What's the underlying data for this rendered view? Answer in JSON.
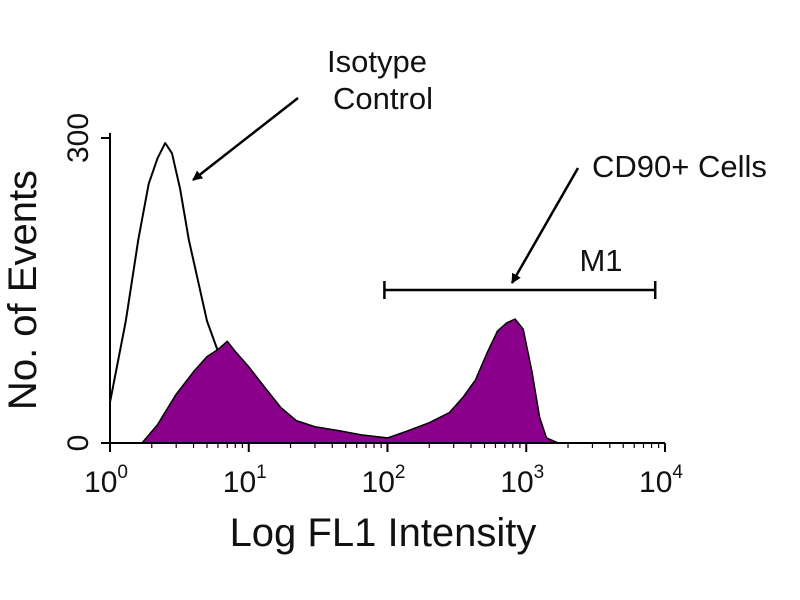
{
  "chart_data": {
    "type": "area",
    "xlabel": "Log FL1 Intensity",
    "ylabel": "No. of Events",
    "xscale": "log",
    "xlim": [
      1,
      10000
    ],
    "ylim": [
      0,
      300
    ],
    "x_ticks": [
      {
        "base": "10",
        "exp": "0"
      },
      {
        "base": "10",
        "exp": "1"
      },
      {
        "base": "10",
        "exp": "2"
      },
      {
        "base": "10",
        "exp": "3"
      },
      {
        "base": "10",
        "exp": "4"
      }
    ],
    "y_ticks": [
      "0",
      "300"
    ],
    "series": [
      {
        "name": "Isotype Control",
        "style": "outline",
        "color": "#000000",
        "x": [
          1,
          1.3,
          1.6,
          1.9,
          2.2,
          2.5,
          2.8,
          3.2,
          3.7,
          4.3,
          5,
          6,
          7,
          8.5,
          10,
          12.5,
          16,
          20,
          25,
          32,
          45,
          65,
          100,
          140,
          200
        ],
        "y": [
          40,
          120,
          200,
          255,
          280,
          295,
          285,
          250,
          200,
          160,
          120,
          90,
          70,
          50,
          38,
          28,
          20,
          14,
          10,
          7,
          4,
          2,
          1,
          0,
          0
        ]
      },
      {
        "name": "CD90+ Cells",
        "style": "filled",
        "color": "#8b008b",
        "x": [
          1.7,
          2.2,
          3,
          4,
          5,
          6,
          7,
          8,
          10,
          13,
          17,
          22,
          30,
          45,
          65,
          100,
          140,
          200,
          280,
          350,
          430,
          520,
          620,
          720,
          830,
          950,
          1100,
          1250,
          1400,
          1700
        ],
        "y": [
          0,
          18,
          48,
          70,
          85,
          92,
          100,
          90,
          75,
          55,
          35,
          22,
          16,
          12,
          8,
          5,
          12,
          20,
          30,
          45,
          62,
          88,
          110,
          118,
          122,
          112,
          70,
          25,
          5,
          0
        ]
      }
    ],
    "annotations": [
      {
        "label_lines": [
          "Isotype",
          "Control"
        ],
        "target": "Isotype Control peak"
      },
      {
        "label_lines": [
          "CD90+ Cells"
        ],
        "target": "CD90+ Cells peak"
      }
    ],
    "marker": {
      "label": "M1",
      "x_start": 95,
      "x_end": 8500
    }
  }
}
